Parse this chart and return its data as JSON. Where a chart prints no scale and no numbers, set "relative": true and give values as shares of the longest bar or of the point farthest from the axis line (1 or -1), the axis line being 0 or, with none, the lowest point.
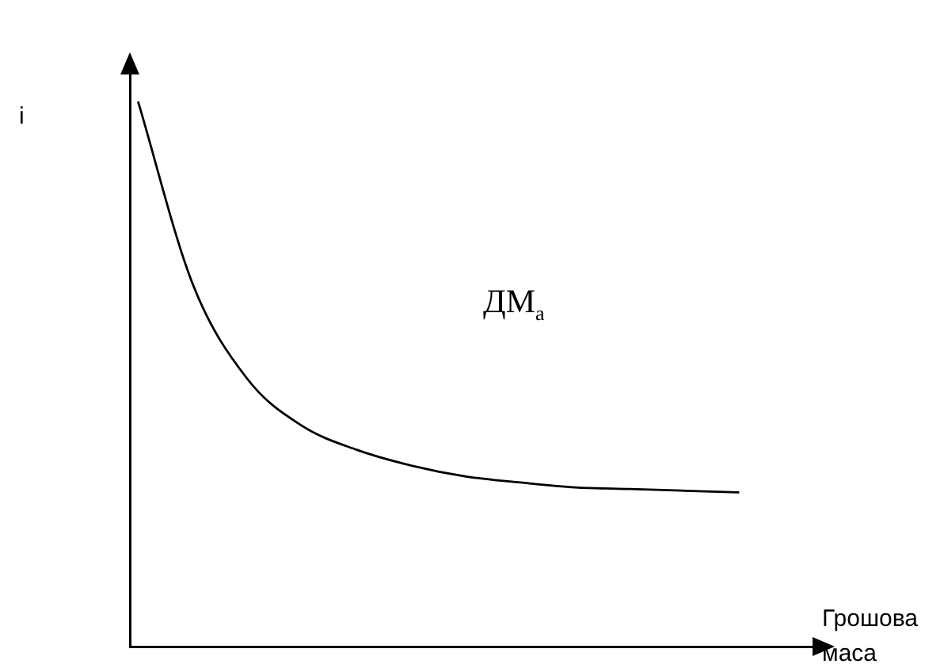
{
  "chart_data": {
    "type": "line",
    "relative": true,
    "ylabel": "i",
    "xlabel": "Грошова маса",
    "annotations": [
      "ДМ$_{a}$"
    ],
    "categories": [
      null,
      null,
      null,
      null,
      null,
      null,
      null,
      null,
      null,
      null,
      null,
      null
    ],
    "series": [
      {
        "color": "#000000",
        "values": [
          1,
          0.665,
          0.491,
          0.405,
          0.361,
          0.332,
          0.312,
          0.301,
          0.292,
          0.289,
          0.286,
          0.283
        ]
      }
    ],
    "grid": false,
    "legend": false,
    "marker": "none",
    "line_style": "solid"
  }
}
